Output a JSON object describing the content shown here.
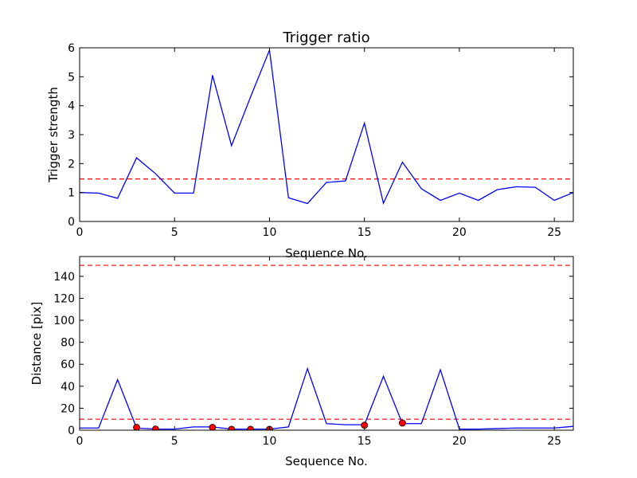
{
  "chart_data": [
    {
      "type": "line",
      "title": "Trigger ratio",
      "xlabel": "Sequence No.",
      "ylabel": "Trigger strength",
      "xlim": [
        0,
        26
      ],
      "ylim": [
        0,
        6
      ],
      "xticks": [
        0,
        5,
        10,
        15,
        20,
        25
      ],
      "yticks": [
        0,
        1,
        2,
        3,
        4,
        5,
        6
      ],
      "grid": false,
      "x": [
        0,
        1,
        2,
        3,
        4,
        5,
        6,
        7,
        8,
        9,
        10,
        11,
        12,
        13,
        14,
        15,
        16,
        17,
        18,
        19,
        20,
        21,
        22,
        23,
        24,
        25,
        26
      ],
      "series": [
        {
          "color": "#0000ff",
          "style": "solid",
          "values": [
            1.0,
            0.98,
            0.8,
            2.2,
            1.65,
            0.98,
            0.98,
            5.05,
            2.62,
            4.3,
            5.92,
            0.82,
            0.62,
            1.35,
            1.4,
            3.4,
            0.63,
            2.05,
            1.13,
            0.73,
            0.98,
            0.73,
            1.1,
            1.2,
            1.18,
            0.73,
            1.0
          ]
        }
      ],
      "threshold": {
        "value": 1.47,
        "color": "#ff0000",
        "style": "dashed"
      }
    },
    {
      "type": "line",
      "title": "",
      "xlabel": "Sequence No.",
      "ylabel": "Distance [pix]",
      "xlim": [
        0,
        26
      ],
      "ylim": [
        0,
        158
      ],
      "xticks": [
        0,
        5,
        10,
        15,
        20,
        25
      ],
      "yticks": [
        0,
        20,
        40,
        60,
        80,
        100,
        120,
        140
      ],
      "grid": false,
      "x": [
        0,
        1,
        2,
        3,
        4,
        5,
        6,
        7,
        8,
        9,
        10,
        11,
        12,
        13,
        14,
        15,
        16,
        17,
        18,
        19,
        20,
        21,
        22,
        23,
        24,
        25,
        26
      ],
      "series": [
        {
          "color": "#0000ff",
          "style": "solid",
          "values": [
            2,
            2,
            46,
            2,
            1,
            1,
            3,
            3,
            1,
            1,
            1,
            3,
            56,
            6,
            5,
            5,
            49,
            6,
            6,
            55,
            1,
            1,
            1.5,
            2,
            2,
            2,
            3.5
          ]
        }
      ],
      "markers": {
        "color": "#ff0000",
        "edge": "#000000",
        "points": [
          [
            3,
            2.5
          ],
          [
            4,
            1
          ],
          [
            7,
            2.5
          ],
          [
            8,
            0.8
          ],
          [
            9,
            0.8
          ],
          [
            10,
            0.8
          ],
          [
            15,
            4.5
          ],
          [
            17,
            6.5
          ]
        ]
      },
      "thresholds": [
        {
          "value": 150,
          "color": "#ff0000",
          "style": "dashed"
        },
        {
          "value": 10,
          "color": "#ff0000",
          "style": "dashed"
        }
      ]
    }
  ]
}
